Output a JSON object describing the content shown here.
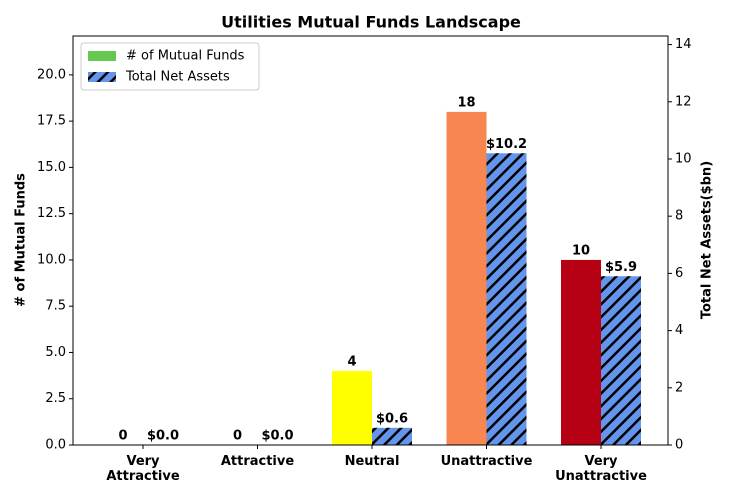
{
  "chart_data": {
    "type": "bar",
    "title": "Utilities Mutual Funds Landscape",
    "categories": [
      "Very\nAttractive",
      "Attractive",
      "Neutral",
      "Unattractive",
      "Very\nUnattractive"
    ],
    "y_label": "# of Mutual Funds",
    "y2_label": "Total Net Assets($bn)",
    "series": [
      {
        "name": "# of Mutual Funds",
        "color": "#66c94f",
        "colors": [
          "#1a9641",
          "#66c94f",
          "#ffff00",
          "#f88650",
          "#b60014"
        ],
        "values": [
          0,
          0,
          4,
          18,
          10
        ]
      },
      {
        "name": "Total Net Assets",
        "color": "#6495ed",
        "hatch": true,
        "axis": "y2",
        "values": [
          0,
          0,
          0.6,
          10.2,
          5.9
        ],
        "value_labels": [
          "$0.0",
          "$0.0",
          "$0.6",
          "$10.2",
          "$5.9"
        ]
      }
    ],
    "ylim": [
      0,
      22.1
    ],
    "yticks": [
      {
        "value": 0,
        "label": "0.0"
      },
      2.5,
      {
        "value": 5,
        "label": "5.0"
      },
      7.5,
      {
        "value": 10,
        "label": "10.0"
      },
      12.5,
      {
        "value": 15,
        "label": "15.0"
      },
      17.5,
      {
        "value": 20,
        "label": "20.0"
      }
    ],
    "y2lim": [
      0,
      14.3
    ],
    "y2ticks": [
      0,
      2,
      4,
      6,
      8,
      10,
      12,
      14
    ],
    "legend": "upper left"
  }
}
